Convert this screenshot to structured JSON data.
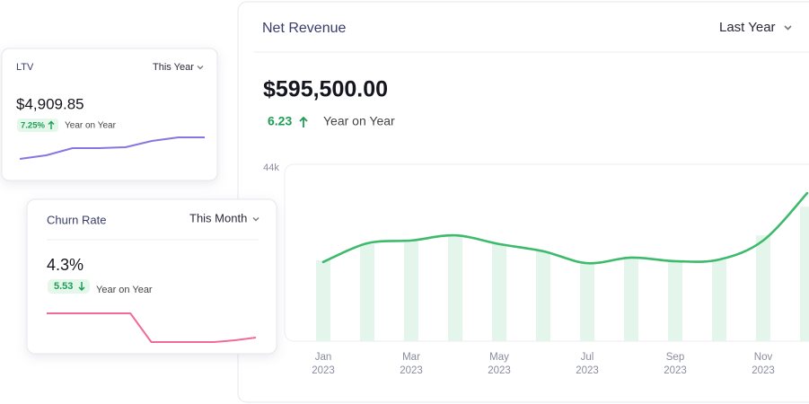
{
  "net_revenue": {
    "title": "Net Revenue",
    "period": "Last Year",
    "amount": "$595,500.00",
    "change": "6.23",
    "change_label": "Year on Year",
    "chart_data": {
      "type": "bar",
      "categories": [
        "Jan",
        null,
        "Mar",
        null,
        "May",
        null,
        "Jul",
        null,
        "Sep",
        null,
        "Nov",
        null
      ],
      "category_years": [
        "2023",
        null,
        "2023",
        null,
        "2023",
        null,
        "2023",
        null,
        "2023",
        null,
        "2023",
        null
      ],
      "ylim": [
        0,
        44000
      ],
      "yticks": [
        {
          "value": 44000,
          "label": "44k"
        }
      ],
      "series": [
        {
          "type": "bar",
          "color": "#e4f6eb",
          "values": [
            20300,
            24400,
            25300,
            26600,
            24400,
            22600,
            19900,
            20800,
            20300,
            20300,
            26600,
            33800
          ]
        },
        {
          "type": "line",
          "color": "#3dba6b",
          "values": [
            19900,
            24600,
            25300,
            26600,
            24400,
            22600,
            19600,
            21000,
            20100,
            20500,
            25300,
            37200
          ]
        }
      ]
    }
  },
  "ltv": {
    "title": "LTV",
    "period": "This Year",
    "amount": "$4,909.85",
    "change": "7.25%",
    "change_label": "Year on Year",
    "sparkline": {
      "type": "line",
      "color": "#8677e0",
      "values": [
        0,
        4,
        12,
        12,
        13,
        20,
        24,
        24
      ]
    }
  },
  "churn": {
    "title": "Churn Rate",
    "period": "This Month",
    "amount": "4.3%",
    "change": "5.53",
    "change_label": "Year on Year",
    "sparkline": {
      "type": "line",
      "color": "#f06b9b",
      "values": [
        32,
        32,
        32,
        32,
        32,
        0,
        0,
        0,
        0,
        2,
        5
      ]
    }
  }
}
